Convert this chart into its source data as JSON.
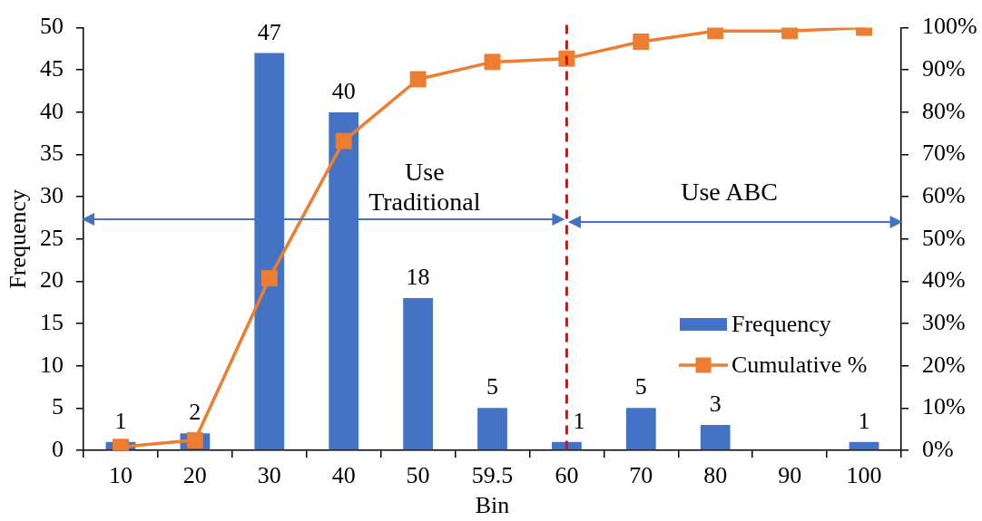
{
  "chart_data": {
    "type": "bar",
    "xlabel": "Bin",
    "ylabel": "Frequency",
    "categories": [
      "10",
      "20",
      "30",
      "40",
      "50",
      "59.5",
      "60",
      "70",
      "80",
      "90",
      "100"
    ],
    "series": [
      {
        "name": "Frequency",
        "color": "#4472c4",
        "values": [
          1,
          2,
          47,
          40,
          18,
          5,
          1,
          5,
          3,
          0,
          1
        ],
        "value_labels": [
          "1",
          "2",
          "47",
          "40",
          "18",
          "5",
          "1",
          "5",
          "3",
          null,
          "1"
        ]
      },
      {
        "name": "Cumulative %",
        "type": "line",
        "axis": "y2",
        "color": "#ed7d31",
        "values": [
          0.8,
          2.4,
          40.7,
          73.2,
          87.8,
          91.9,
          92.7,
          96.7,
          99.2,
          99.2,
          100
        ]
      }
    ],
    "ylim": [
      0,
      50
    ],
    "yticks": [
      0,
      5,
      10,
      15,
      20,
      25,
      30,
      35,
      40,
      45,
      50
    ],
    "y2lim": [
      0,
      100
    ],
    "y2ticks": [
      {
        "value": 0,
        "label": "0%"
      },
      {
        "value": 10,
        "label": "10%"
      },
      {
        "value": 20,
        "label": "20%"
      },
      {
        "value": 30,
        "label": "30%"
      },
      {
        "value": 40,
        "label": "40%"
      },
      {
        "value": 50,
        "label": "50%"
      },
      {
        "value": 60,
        "label": "60%"
      },
      {
        "value": 70,
        "label": "70%"
      },
      {
        "value": 80,
        "label": "80%"
      },
      {
        "value": 90,
        "label": "90%"
      },
      {
        "value": 100,
        "label": "100%"
      }
    ],
    "ref_lines": [
      {
        "axis": "x",
        "value": "60",
        "color": "#ff0000",
        "line_style": "dashed"
      }
    ],
    "annotations": [
      "Use Traditional",
      "Use ABC"
    ],
    "grid": false,
    "legend": "bottom right",
    "marker": "square"
  }
}
